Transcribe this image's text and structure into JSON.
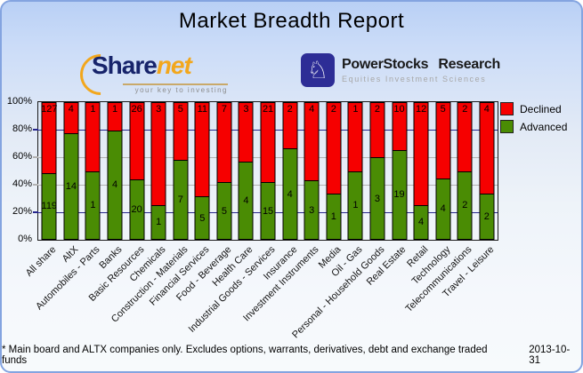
{
  "card": {
    "title": "Market Breadth Report"
  },
  "logos": {
    "sharenet": {
      "brand_primary": "Share",
      "brand_secondary": "net",
      "tagline": "your key to investing"
    },
    "powerstocks": {
      "brand": "PowerStocks Research",
      "tagline": "Equities Investment Sciences",
      "icon": "knight-chess-icon"
    }
  },
  "legend": {
    "position": "top-right",
    "items": [
      {
        "label": "Declined",
        "color": "#f60000"
      },
      {
        "label": "Advanced",
        "color": "#4a8c04"
      }
    ]
  },
  "chart_data": {
    "type": "bar",
    "variant": "stacked-100percent",
    "title": "Market Breadth Report",
    "categories": [
      "All share",
      "AltX",
      "Automobiles - Parts",
      "Banks",
      "Basic Resources",
      "Chemicals",
      "Construction - Materials",
      "Financial Services",
      "Food - Beverage",
      "Health Care",
      "Industrial Goods - Services",
      "Insurance",
      "Investment Instruments",
      "Media",
      "Oil - Gas",
      "Personal - Household Goods",
      "Real Estate",
      "Retail",
      "Technology",
      "Telecommunications",
      "Travel - Leisure"
    ],
    "series": [
      {
        "name": "Declined",
        "color": "#f60000",
        "values": [
          127,
          4,
          1,
          1,
          26,
          3,
          5,
          11,
          7,
          3,
          21,
          2,
          4,
          2,
          1,
          2,
          10,
          12,
          5,
          2,
          4
        ]
      },
      {
        "name": "Advanced",
        "color": "#4a8c04",
        "values": [
          119,
          14,
          1,
          4,
          20,
          1,
          7,
          5,
          5,
          4,
          15,
          4,
          3,
          1,
          1,
          3,
          19,
          4,
          4,
          2,
          2
        ]
      }
    ],
    "value_axis": {
      "ticks": [
        "100%",
        "80%",
        "60%",
        "40%",
        "20%",
        "0%"
      ],
      "min": 0,
      "max": 100
    },
    "gridlines": [
      {
        "at_pct": 80,
        "color": "#26268c"
      },
      {
        "at_pct": 60,
        "color": "#b2b2b2"
      },
      {
        "at_pct": 40,
        "color": "#b2b2b2"
      },
      {
        "at_pct": 20,
        "color": "#26268c"
      }
    ],
    "bar_label_meaning": "number of companies in each segment"
  },
  "footer": {
    "note": "* Main board and ALTX companies only. Excludes options, warrants, derivatives, debt and exchange traded funds",
    "date": "2013-10-31"
  }
}
